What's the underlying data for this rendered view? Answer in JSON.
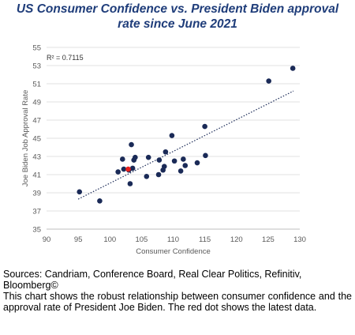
{
  "title": {
    "line1": "US Consumer Confidence vs. President Biden approval",
    "line2": "rate since June 2021"
  },
  "caption": {
    "sources": "Sources: Candriam, Conference Board, Real Clear Politics, Refinitiv, Bloomberg©",
    "description": "This chart shows the robust relationship between consumer confidence and the approval rate of President Joe Biden. The red dot shows the latest data."
  },
  "chart_data": {
    "type": "scatter",
    "xlabel": "Consumer Confidence",
    "ylabel": "Joe Biden Job Approval Rate",
    "xlim": [
      90,
      130
    ],
    "ylim": [
      35,
      55
    ],
    "xticks": [
      90,
      95,
      100,
      105,
      110,
      115,
      120,
      125,
      130
    ],
    "yticks": [
      35,
      37,
      39,
      41,
      43,
      45,
      47,
      49,
      51,
      53,
      55
    ],
    "grid": "horizontal",
    "annotation": "R² = 0.7115",
    "trendline": {
      "style": "dotted",
      "x": [
        95,
        129
      ],
      "y": [
        38.3,
        50.2
      ]
    },
    "series_color": "#1a2a57",
    "highlight_color": "#e8201c",
    "points": [
      {
        "x": 95.2,
        "y": 39.1
      },
      {
        "x": 98.4,
        "y": 38.1
      },
      {
        "x": 101.3,
        "y": 41.3
      },
      {
        "x": 102.0,
        "y": 42.7
      },
      {
        "x": 102.2,
        "y": 41.6
      },
      {
        "x": 103.0,
        "y": 41.5
      },
      {
        "x": 103.2,
        "y": 40.0
      },
      {
        "x": 103.4,
        "y": 44.3
      },
      {
        "x": 103.6,
        "y": 41.7
      },
      {
        "x": 103.8,
        "y": 42.6
      },
      {
        "x": 104.0,
        "y": 42.9
      },
      {
        "x": 105.8,
        "y": 40.8
      },
      {
        "x": 106.1,
        "y": 42.9
      },
      {
        "x": 107.7,
        "y": 41.0
      },
      {
        "x": 107.8,
        "y": 42.6
      },
      {
        "x": 108.4,
        "y": 41.5
      },
      {
        "x": 108.6,
        "y": 41.9
      },
      {
        "x": 108.8,
        "y": 43.5
      },
      {
        "x": 109.8,
        "y": 45.3
      },
      {
        "x": 110.2,
        "y": 42.5
      },
      {
        "x": 111.2,
        "y": 41.4
      },
      {
        "x": 111.6,
        "y": 42.7
      },
      {
        "x": 111.9,
        "y": 42.0
      },
      {
        "x": 113.8,
        "y": 42.3
      },
      {
        "x": 115.0,
        "y": 46.3
      },
      {
        "x": 115.1,
        "y": 43.1
      },
      {
        "x": 125.1,
        "y": 51.3
      },
      {
        "x": 128.9,
        "y": 52.7
      },
      {
        "x": 102.9,
        "y": 41.6,
        "latest": true
      }
    ]
  }
}
